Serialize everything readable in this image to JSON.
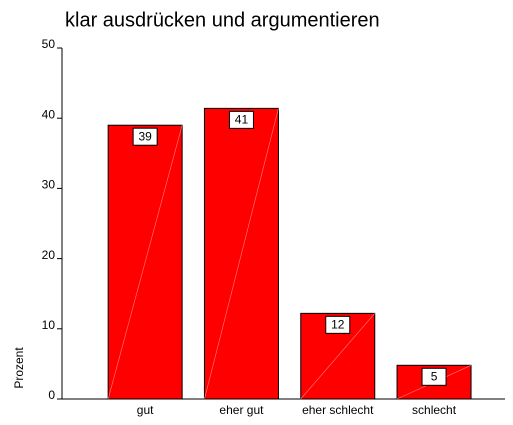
{
  "chart_data": {
    "type": "bar",
    "title": "klar ausdrücken und argumentieren",
    "y_label": "Prozent",
    "categories": [
      "gut",
      "eher gut",
      "eher schlecht",
      "schlecht"
    ],
    "values": [
      39,
      41.4,
      12.2,
      4.8
    ],
    "value_labels": [
      "39",
      "41",
      "12",
      "5"
    ],
    "color": "#ff0000",
    "ylim": [
      0,
      50
    ],
    "yticks": [
      0,
      10,
      20,
      30,
      40,
      50
    ]
  }
}
